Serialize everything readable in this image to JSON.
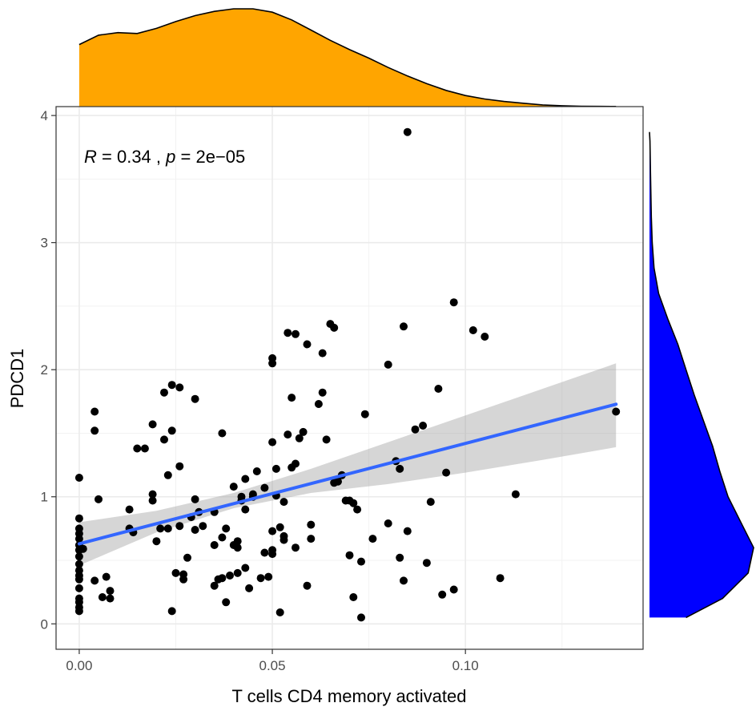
{
  "chart_data": {
    "type": "scatter",
    "xlabel": "T cells CD4 memory activated",
    "ylabel": "PDCD1",
    "annotation": {
      "r_label": "R",
      "r_value": "= 0.34 ,",
      "p_label": "p",
      "p_value": "= 2e−05"
    },
    "xlim": [
      -0.006,
      0.146
    ],
    "ylim": [
      -0.2,
      4.07
    ],
    "x_ticks": [
      {
        "value": 0.0,
        "label": "0.00"
      },
      {
        "value": 0.05,
        "label": "0.05"
      },
      {
        "value": 0.1,
        "label": "0.10"
      }
    ],
    "y_ticks": [
      {
        "value": 0,
        "label": "0"
      },
      {
        "value": 1,
        "label": "1"
      },
      {
        "value": 2,
        "label": "2"
      },
      {
        "value": 3,
        "label": "3"
      },
      {
        "value": 4,
        "label": "4"
      }
    ],
    "grid": true,
    "colors": {
      "points": "#000000",
      "fit_line": "#3366ff",
      "ci_band": "#999999",
      "top_density": "#FFA500",
      "right_density": "#0000FF"
    },
    "fit": {
      "intercept": 0.63,
      "slope": 7.9
    },
    "ci_band": {
      "x": [
        0.0,
        0.02,
        0.04,
        0.06,
        0.08,
        0.1,
        0.12,
        0.139
      ],
      "lower": [
        0.46,
        0.72,
        0.91,
        1.03,
        1.1,
        1.19,
        1.29,
        1.39
      ],
      "upper": [
        0.8,
        0.89,
        1.03,
        1.22,
        1.43,
        1.64,
        1.85,
        2.05
      ]
    },
    "points": [
      [
        0.0,
        1.15
      ],
      [
        0.0,
        0.83
      ],
      [
        0.0,
        0.75
      ],
      [
        0.0,
        0.71
      ],
      [
        0.0,
        0.67
      ],
      [
        0.0,
        0.62
      ],
      [
        0.0,
        0.58
      ],
      [
        0.0,
        0.53
      ],
      [
        0.0,
        0.47
      ],
      [
        0.0,
        0.42
      ],
      [
        0.0,
        0.38
      ],
      [
        0.0,
        0.35
      ],
      [
        0.0,
        0.28
      ],
      [
        0.0,
        0.2
      ],
      [
        0.0,
        0.17
      ],
      [
        0.0,
        0.13
      ],
      [
        0.0,
        0.1
      ],
      [
        0.001,
        0.59
      ],
      [
        0.004,
        0.34
      ],
      [
        0.004,
        1.67
      ],
      [
        0.004,
        1.52
      ],
      [
        0.005,
        0.98
      ],
      [
        0.006,
        0.21
      ],
      [
        0.007,
        0.37
      ],
      [
        0.008,
        0.26
      ],
      [
        0.008,
        0.2
      ],
      [
        0.013,
        0.9
      ],
      [
        0.013,
        0.75
      ],
      [
        0.014,
        0.72
      ],
      [
        0.015,
        1.38
      ],
      [
        0.017,
        1.38
      ],
      [
        0.019,
        0.97
      ],
      [
        0.019,
        1.02
      ],
      [
        0.019,
        1.57
      ],
      [
        0.02,
        0.65
      ],
      [
        0.021,
        0.75
      ],
      [
        0.022,
        1.45
      ],
      [
        0.022,
        1.82
      ],
      [
        0.023,
        0.75
      ],
      [
        0.023,
        1.17
      ],
      [
        0.024,
        0.1
      ],
      [
        0.024,
        1.52
      ],
      [
        0.024,
        1.88
      ],
      [
        0.025,
        0.4
      ],
      [
        0.026,
        0.77
      ],
      [
        0.026,
        1.24
      ],
      [
        0.026,
        1.86
      ],
      [
        0.027,
        0.35
      ],
      [
        0.027,
        0.39
      ],
      [
        0.028,
        0.52
      ],
      [
        0.029,
        0.84
      ],
      [
        0.03,
        0.74
      ],
      [
        0.03,
        0.98
      ],
      [
        0.03,
        1.77
      ],
      [
        0.031,
        0.88
      ],
      [
        0.032,
        0.77
      ],
      [
        0.035,
        0.62
      ],
      [
        0.035,
        0.88
      ],
      [
        0.035,
        0.3
      ],
      [
        0.036,
        0.35
      ],
      [
        0.037,
        0.68
      ],
      [
        0.037,
        0.36
      ],
      [
        0.037,
        1.5
      ],
      [
        0.038,
        0.17
      ],
      [
        0.038,
        0.75
      ],
      [
        0.039,
        0.38
      ],
      [
        0.04,
        0.62
      ],
      [
        0.04,
        1.08
      ],
      [
        0.041,
        0.4
      ],
      [
        0.041,
        0.65
      ],
      [
        0.041,
        0.6
      ],
      [
        0.042,
        1.0
      ],
      [
        0.042,
        0.97
      ],
      [
        0.043,
        1.14
      ],
      [
        0.043,
        0.9
      ],
      [
        0.043,
        0.44
      ],
      [
        0.044,
        0.28
      ],
      [
        0.045,
        1.0
      ],
      [
        0.045,
        1.02
      ],
      [
        0.046,
        1.2
      ],
      [
        0.047,
        0.36
      ],
      [
        0.048,
        0.56
      ],
      [
        0.048,
        1.07
      ],
      [
        0.049,
        0.37
      ],
      [
        0.05,
        0.73
      ],
      [
        0.05,
        1.43
      ],
      [
        0.05,
        2.09
      ],
      [
        0.05,
        2.05
      ],
      [
        0.05,
        0.55
      ],
      [
        0.05,
        0.58
      ],
      [
        0.051,
        1.01
      ],
      [
        0.051,
        1.22
      ],
      [
        0.052,
        0.09
      ],
      [
        0.052,
        0.76
      ],
      [
        0.053,
        0.96
      ],
      [
        0.053,
        0.69
      ],
      [
        0.053,
        0.66
      ],
      [
        0.054,
        2.29
      ],
      [
        0.054,
        1.49
      ],
      [
        0.055,
        1.78
      ],
      [
        0.055,
        1.23
      ],
      [
        0.056,
        0.6
      ],
      [
        0.056,
        1.26
      ],
      [
        0.056,
        2.28
      ],
      [
        0.057,
        1.46
      ],
      [
        0.058,
        1.51
      ],
      [
        0.059,
        0.3
      ],
      [
        0.059,
        2.2
      ],
      [
        0.06,
        0.78
      ],
      [
        0.06,
        0.67
      ],
      [
        0.062,
        1.73
      ],
      [
        0.063,
        1.82
      ],
      [
        0.063,
        2.13
      ],
      [
        0.064,
        1.45
      ],
      [
        0.065,
        2.36
      ],
      [
        0.066,
        2.33
      ],
      [
        0.066,
        1.11
      ],
      [
        0.067,
        1.12
      ],
      [
        0.068,
        1.17
      ],
      [
        0.069,
        0.97
      ],
      [
        0.07,
        0.97
      ],
      [
        0.07,
        0.54
      ],
      [
        0.071,
        0.95
      ],
      [
        0.071,
        0.21
      ],
      [
        0.072,
        0.9
      ],
      [
        0.073,
        0.49
      ],
      [
        0.073,
        0.05
      ],
      [
        0.074,
        1.65
      ],
      [
        0.076,
        0.67
      ],
      [
        0.08,
        0.79
      ],
      [
        0.08,
        2.04
      ],
      [
        0.082,
        1.28
      ],
      [
        0.083,
        0.52
      ],
      [
        0.083,
        1.22
      ],
      [
        0.084,
        2.34
      ],
      [
        0.084,
        0.34
      ],
      [
        0.085,
        3.87
      ],
      [
        0.085,
        0.73
      ],
      [
        0.087,
        1.53
      ],
      [
        0.089,
        1.56
      ],
      [
        0.09,
        0.48
      ],
      [
        0.091,
        0.96
      ],
      [
        0.093,
        1.85
      ],
      [
        0.094,
        0.23
      ],
      [
        0.095,
        1.19
      ],
      [
        0.097,
        0.27
      ],
      [
        0.097,
        2.53
      ],
      [
        0.102,
        2.31
      ],
      [
        0.105,
        2.26
      ],
      [
        0.109,
        0.36
      ],
      [
        0.113,
        1.02
      ],
      [
        0.139,
        1.67
      ]
    ],
    "top_density": {
      "x": [
        0.0,
        0.005,
        0.01,
        0.015,
        0.02,
        0.025,
        0.03,
        0.035,
        0.04,
        0.045,
        0.05,
        0.055,
        0.06,
        0.065,
        0.07,
        0.075,
        0.08,
        0.085,
        0.09,
        0.095,
        0.1,
        0.105,
        0.11,
        0.115,
        0.12,
        0.125,
        0.13,
        0.135,
        0.139
      ],
      "density": [
        0.73,
        0.84,
        0.87,
        0.86,
        0.92,
        1.0,
        1.07,
        1.12,
        1.15,
        1.15,
        1.11,
        1.02,
        0.9,
        0.78,
        0.67,
        0.57,
        0.46,
        0.36,
        0.27,
        0.19,
        0.13,
        0.09,
        0.06,
        0.04,
        0.02,
        0.01,
        0.005,
        0.003,
        0.002
      ]
    },
    "right_density": {
      "y": [
        0.05,
        0.2,
        0.4,
        0.6,
        0.8,
        1.0,
        1.2,
        1.4,
        1.6,
        1.8,
        2.0,
        2.2,
        2.4,
        2.6,
        2.8,
        3.0,
        3.2,
        3.4,
        3.6,
        3.8,
        3.87
      ],
      "density": [
        0.4,
        0.8,
        1.08,
        1.14,
        1.0,
        0.86,
        0.77,
        0.69,
        0.59,
        0.49,
        0.4,
        0.31,
        0.2,
        0.1,
        0.05,
        0.03,
        0.02,
        0.015,
        0.01,
        0.005,
        0.0
      ]
    }
  }
}
